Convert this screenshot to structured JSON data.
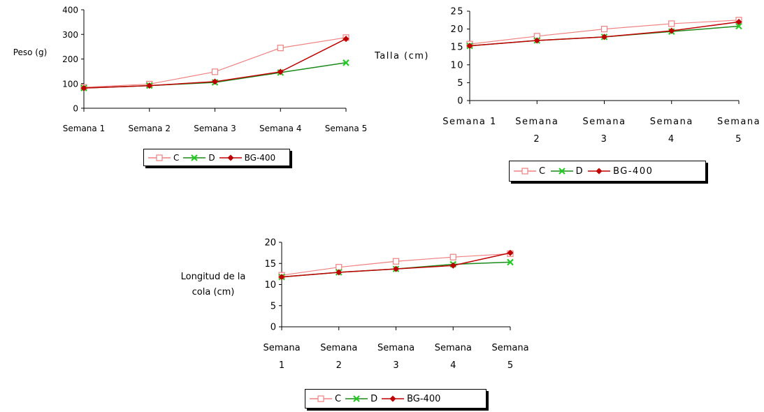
{
  "series_styles": [
    {
      "name": "C",
      "color": "#f08080",
      "marker": "square-open"
    },
    {
      "name": "D",
      "color": "#1a8a1a",
      "marker": "x",
      "marker_color": "#22cc22"
    },
    {
      "name": "BG-400",
      "color": "#c00000",
      "marker": "diamond-filled"
    }
  ],
  "chart_data": [
    {
      "type": "line",
      "ylabel": "Peso (g)",
      "categories": [
        "Semana 1",
        "Semana 2",
        "Semana 3",
        "Semana 4",
        "Semana 5"
      ],
      "ylim": [
        0,
        400
      ],
      "yticks": [
        "0",
        "100",
        "200",
        "300",
        "400"
      ],
      "series": [
        {
          "name": "C",
          "values": [
            85,
            98,
            148,
            245,
            287
          ]
        },
        {
          "name": "D",
          "values": [
            82,
            92,
            105,
            145,
            185
          ]
        },
        {
          "name": "BG-400",
          "values": [
            82,
            92,
            108,
            148,
            282
          ]
        }
      ],
      "grid": false,
      "legend": "bottom"
    },
    {
      "type": "line",
      "ylabel": "Talla (cm)",
      "categories": [
        "Semana 1",
        "Semana 2",
        "Semana 3",
        "Semana 4",
        "Semana 5"
      ],
      "ylim": [
        0,
        25
      ],
      "yticks": [
        "0",
        "5",
        "10",
        "15",
        "20",
        "25"
      ],
      "series": [
        {
          "name": "C",
          "values": [
            15.8,
            18.0,
            20.0,
            21.5,
            22.5
          ]
        },
        {
          "name": "D",
          "values": [
            15.3,
            16.8,
            17.8,
            19.3,
            20.8
          ]
        },
        {
          "name": "BG-400",
          "values": [
            15.3,
            16.8,
            17.8,
            19.5,
            22.0
          ]
        }
      ],
      "grid": false,
      "legend": "bottom"
    },
    {
      "type": "line",
      "ylabel": "Longitud de la cola (cm)",
      "categories": [
        "Semana 1",
        "Semana 2",
        "Semana 3",
        "Semana 4",
        "Semana 5"
      ],
      "ylim": [
        0,
        20
      ],
      "yticks": [
        "0",
        "5",
        "10",
        "15",
        "20"
      ],
      "series": [
        {
          "name": "C",
          "values": [
            12.2,
            14.1,
            15.5,
            16.5,
            17.3
          ]
        },
        {
          "name": "D",
          "values": [
            11.8,
            12.9,
            13.7,
            14.8,
            15.3
          ]
        },
        {
          "name": "BG-400",
          "values": [
            11.8,
            12.9,
            13.7,
            14.5,
            17.5
          ]
        }
      ],
      "grid": false,
      "legend": "bottom"
    }
  ]
}
